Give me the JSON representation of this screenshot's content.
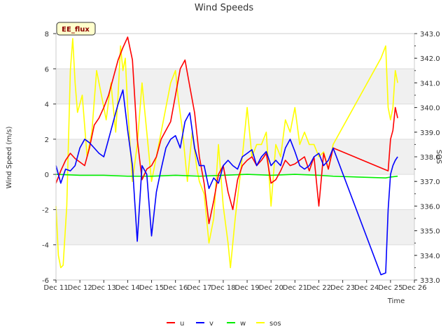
{
  "chart_data": {
    "type": "line",
    "title": "Wind Speeds",
    "badge": "EE_flux",
    "xlabel": "Time",
    "ylabel": "Wind Speed (m/s)",
    "y2label": "SOS",
    "xlim": [
      11,
      26
    ],
    "ylim": [
      -6,
      8
    ],
    "y2lim": [
      333.0,
      343.0
    ],
    "x_ticks": [
      11,
      12,
      13,
      14,
      15,
      16,
      17,
      18,
      19,
      20,
      21,
      22,
      23,
      24,
      25,
      26
    ],
    "x_tick_labels": [
      "Dec 11",
      "Dec 12",
      "Dec 13",
      "Dec 14",
      "Dec 15",
      "Dec 16",
      "Dec 17",
      "Dec 18",
      "Dec 19",
      "Dec 20",
      "Dec 21",
      "Dec 22",
      "Dec 23",
      "Dec 24",
      "Dec 25",
      "Dec 26"
    ],
    "y_ticks": [
      -6,
      -4,
      -2,
      0,
      2,
      4,
      6,
      8
    ],
    "y_tick_labels": [
      "-6",
      "-4",
      "-2",
      "0",
      "2",
      "4",
      "6",
      "8"
    ],
    "y2_ticks": [
      333.0,
      334.0,
      335.0,
      336.0,
      337.0,
      338.0,
      339.0,
      340.0,
      341.0,
      342.0,
      343.0
    ],
    "y2_tick_labels": [
      "333.0",
      "334.0",
      "335.0",
      "336.0",
      "337.0",
      "338.0",
      "339.0",
      "340.0",
      "341.0",
      "342.0",
      "343.0"
    ],
    "legend_position": "bottom",
    "series": [
      {
        "name": "u",
        "color": "#ff0000",
        "axis": "left",
        "x": [
          11.0,
          11.2,
          11.4,
          11.6,
          11.8,
          12.0,
          12.2,
          12.4,
          12.6,
          12.8,
          13.0,
          13.2,
          13.4,
          13.6,
          13.8,
          14.0,
          14.2,
          14.4,
          14.6,
          14.8,
          15.0,
          15.2,
          15.4,
          15.6,
          15.8,
          16.0,
          16.2,
          16.4,
          16.6,
          16.8,
          17.0,
          17.2,
          17.4,
          17.6,
          17.8,
          18.0,
          18.2,
          18.4,
          18.6,
          18.8,
          19.0,
          19.2,
          19.4,
          19.6,
          19.8,
          20.0,
          20.2,
          20.4,
          20.6,
          20.8,
          21.0,
          21.2,
          21.4,
          21.6,
          21.8,
          22.0,
          22.2,
          22.4,
          22.6,
          24.9,
          25.0,
          25.1,
          25.2,
          25.3
        ],
        "y": [
          -0.5,
          0.2,
          0.8,
          1.2,
          0.9,
          0.7,
          0.5,
          1.5,
          2.8,
          3.2,
          3.8,
          4.5,
          5.5,
          6.5,
          7.2,
          7.8,
          6.5,
          2.0,
          -0.3,
          0.3,
          0.5,
          1.0,
          2.0,
          2.5,
          3.0,
          4.5,
          6.0,
          6.5,
          5.0,
          3.5,
          1.0,
          -0.5,
          -2.8,
          -1.5,
          0.0,
          0.5,
          -1.0,
          -2.0,
          -0.3,
          0.5,
          0.8,
          1.0,
          0.5,
          0.8,
          1.2,
          -0.5,
          -0.3,
          0.2,
          0.8,
          0.5,
          0.6,
          0.8,
          1.0,
          0.2,
          1.0,
          -1.8,
          1.2,
          0.3,
          1.5,
          0.2,
          2.0,
          2.5,
          3.8,
          3.2
        ]
      },
      {
        "name": "v",
        "color": "#0000ff",
        "axis": "left",
        "x": [
          11.0,
          11.2,
          11.4,
          11.6,
          11.8,
          12.0,
          12.2,
          12.4,
          12.6,
          12.8,
          13.0,
          13.2,
          13.4,
          13.6,
          13.8,
          14.0,
          14.2,
          14.4,
          14.6,
          14.8,
          15.0,
          15.2,
          15.4,
          15.6,
          15.8,
          16.0,
          16.2,
          16.4,
          16.6,
          16.8,
          17.0,
          17.2,
          17.4,
          17.6,
          17.8,
          18.0,
          18.2,
          18.4,
          18.6,
          18.8,
          19.0,
          19.2,
          19.4,
          19.6,
          19.8,
          20.0,
          20.2,
          20.4,
          20.6,
          20.8,
          21.0,
          21.2,
          21.4,
          21.6,
          21.8,
          22.0,
          22.2,
          22.4,
          22.6,
          24.6,
          24.8,
          24.9,
          25.0,
          25.1,
          25.2,
          25.3
        ],
        "y": [
          0.5,
          -0.5,
          0.3,
          0.2,
          0.5,
          1.5,
          2.0,
          1.8,
          1.5,
          1.2,
          1.0,
          2.0,
          3.0,
          4.0,
          4.8,
          2.5,
          0.5,
          -3.8,
          0.5,
          0.0,
          -3.5,
          -1.0,
          0.3,
          1.5,
          2.0,
          2.2,
          1.5,
          3.0,
          3.5,
          1.5,
          0.5,
          0.5,
          -0.8,
          -0.2,
          -0.5,
          0.5,
          0.8,
          0.5,
          0.3,
          1.0,
          1.2,
          1.4,
          0.5,
          1.0,
          1.3,
          0.5,
          0.8,
          0.5,
          1.5,
          2.0,
          1.3,
          0.5,
          0.3,
          0.5,
          1.0,
          1.2,
          0.5,
          0.8,
          1.5,
          -5.7,
          -5.6,
          -2.0,
          0.0,
          0.5,
          0.8,
          1.0
        ]
      },
      {
        "name": "w",
        "color": "#00ee00",
        "axis": "left",
        "x": [
          11.0,
          12.0,
          13.0,
          14.0,
          15.0,
          16.0,
          17.0,
          18.0,
          19.0,
          20.0,
          21.0,
          22.0,
          22.6,
          24.8,
          25.0,
          25.3
        ],
        "y": [
          0.0,
          -0.05,
          -0.05,
          -0.1,
          -0.1,
          -0.05,
          -0.1,
          -0.05,
          0.0,
          -0.05,
          0.0,
          -0.05,
          -0.1,
          -0.2,
          -0.15,
          -0.1
        ]
      },
      {
        "name": "sos",
        "color": "#ffff00",
        "axis": "right",
        "x": [
          11.0,
          11.1,
          11.2,
          11.3,
          11.45,
          11.6,
          11.7,
          11.8,
          11.9,
          12.1,
          12.3,
          12.5,
          12.7,
          12.9,
          13.1,
          13.3,
          13.5,
          13.6,
          13.7,
          13.8,
          13.9,
          14.0,
          14.2,
          14.4,
          14.6,
          14.8,
          15.0,
          15.2,
          15.4,
          15.6,
          15.8,
          16.0,
          16.1,
          16.3,
          16.5,
          16.7,
          16.9,
          17.0,
          17.2,
          17.4,
          17.6,
          17.8,
          18.0,
          18.2,
          18.3,
          18.5,
          18.8,
          19.0,
          19.2,
          19.4,
          19.6,
          19.8,
          20.0,
          20.2,
          20.4,
          20.6,
          20.8,
          21.0,
          21.2,
          21.4,
          21.6,
          21.8,
          22.0,
          22.2,
          22.4,
          22.6,
          24.6,
          24.8,
          24.9,
          25.0,
          25.1,
          25.2,
          25.3
        ],
        "y": [
          336.0,
          334.0,
          333.5,
          333.6,
          336.0,
          341.5,
          342.8,
          341.0,
          339.8,
          340.5,
          338.0,
          339.0,
          341.5,
          340.5,
          339.5,
          341.0,
          339.0,
          340.5,
          342.5,
          341.5,
          342.0,
          340.0,
          337.0,
          338.5,
          341.0,
          339.0,
          337.0,
          338.0,
          339.0,
          340.0,
          341.0,
          341.5,
          340.5,
          339.0,
          337.0,
          339.0,
          337.5,
          337.0,
          336.5,
          334.5,
          335.5,
          338.5,
          336.0,
          334.5,
          333.5,
          335.5,
          338.0,
          340.0,
          338.0,
          338.5,
          338.5,
          339.0,
          336.0,
          338.5,
          338.0,
          339.5,
          339.0,
          340.0,
          338.5,
          339.0,
          338.5,
          338.5,
          338.0,
          338.2,
          337.5,
          338.5,
          342.0,
          342.5,
          340.0,
          339.5,
          340.0,
          341.5,
          341.0
        ]
      }
    ]
  }
}
